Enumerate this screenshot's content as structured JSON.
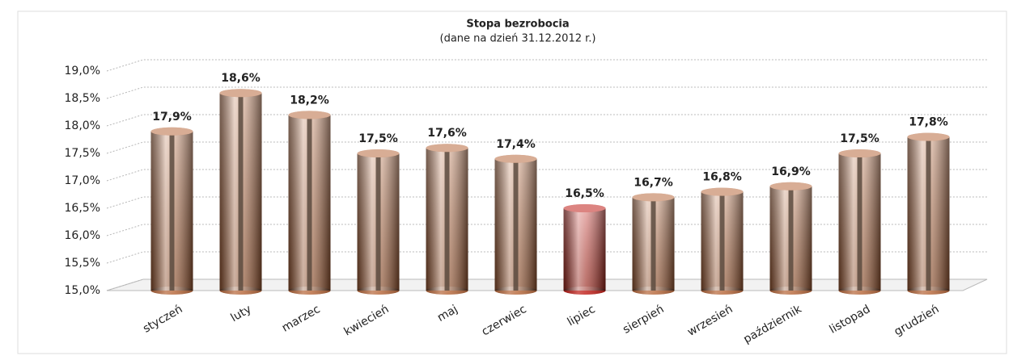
{
  "chart_data": {
    "type": "bar",
    "title": "Stopa bezrobocia",
    "subtitle": "(dane na dzień 31.12.2012 r.)",
    "categories": [
      "styczeń",
      "luty",
      "marzec",
      "kwiecień",
      "maj",
      "czerwiec",
      "lipiec",
      "sierpień",
      "wrzesień",
      "październik",
      "listopad",
      "grudzień"
    ],
    "values": [
      17.9,
      18.6,
      18.2,
      17.5,
      17.6,
      17.4,
      16.5,
      16.7,
      16.8,
      16.9,
      17.5,
      17.8
    ],
    "value_labels": [
      "17,9%",
      "18,6%",
      "18,2%",
      "17,5%",
      "17,6%",
      "17,4%",
      "16,5%",
      "16,7%",
      "16,8%",
      "16,9%",
      "17,5%",
      "17,8%"
    ],
    "colors": [
      "#b86a3e",
      "#b86a3e",
      "#b86a3e",
      "#b86a3e",
      "#b86a3e",
      "#b86a3e",
      "#c0201a",
      "#b86a3e",
      "#b86a3e",
      "#b86a3e",
      "#b86a3e",
      "#b86a3e"
    ],
    "ylim": [
      15,
      19
    ],
    "yticks": [
      {
        "value": 15,
        "label": "15,0%"
      },
      {
        "value": 15.5,
        "label": "15,5%"
      },
      {
        "value": 16,
        "label": "16,0%"
      },
      {
        "value": 16.5,
        "label": "16,5%"
      },
      {
        "value": 17,
        "label": "17,0%"
      },
      {
        "value": 17.5,
        "label": "17,5%"
      },
      {
        "value": 18,
        "label": "18,0%"
      },
      {
        "value": 18.5,
        "label": "18,5%"
      },
      {
        "value": 19,
        "label": "19,0%"
      }
    ],
    "grid": true
  }
}
